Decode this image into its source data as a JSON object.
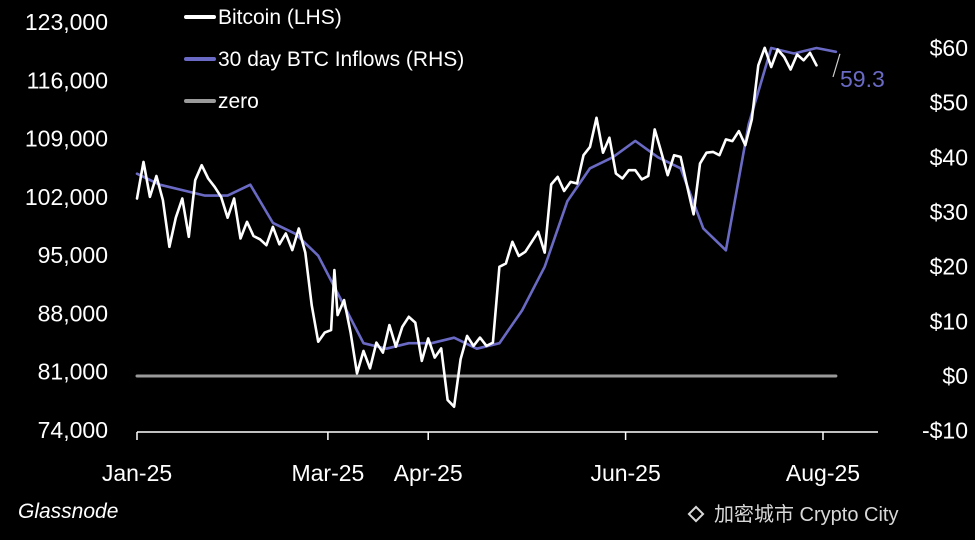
{
  "chart_data": {
    "type": "line",
    "x_axis": {
      "tick_labels": [
        "Jan-25",
        "Mar-25",
        "Apr-25",
        "Jun-25",
        "Aug-25"
      ],
      "range": [
        "2025-01-01",
        "2025-08-18"
      ]
    },
    "y_left": {
      "range": [
        74000,
        123000
      ],
      "ticks": [
        74000,
        81000,
        88000,
        95000,
        102000,
        109000,
        116000,
        123000
      ],
      "tick_labels": [
        "74,000",
        "81,000",
        "88,000",
        "95,000",
        "102,000",
        "109,000",
        "116,000",
        "123,000"
      ]
    },
    "y_right": {
      "range": [
        -10,
        65
      ],
      "ticks": [
        -10,
        0,
        10,
        20,
        30,
        40,
        50,
        60
      ],
      "tick_labels": [
        "-$10",
        "$0",
        "$10",
        "$20",
        "$30",
        "$40",
        "$50",
        "$60"
      ]
    },
    "legend": {
      "placement": "top-left",
      "entries": [
        {
          "label": "Bitcoin (LHS)",
          "color": "#ffffff"
        },
        {
          "label": "30 day BTC Inflows (RHS)",
          "color": "#6a6ac4"
        },
        {
          "label": "zero",
          "color": "#9a9a9a"
        }
      ]
    },
    "series": [
      {
        "name": "Bitcoin (LHS)",
        "axis": "left",
        "color": "#ffffff",
        "x": [
          "2025-01-01",
          "2025-01-03",
          "2025-01-05",
          "2025-01-07",
          "2025-01-09",
          "2025-01-11",
          "2025-01-13",
          "2025-01-15",
          "2025-01-17",
          "2025-01-19",
          "2025-01-21",
          "2025-01-23",
          "2025-01-25",
          "2025-01-27",
          "2025-01-29",
          "2025-01-31",
          "2025-02-02",
          "2025-02-04",
          "2025-02-06",
          "2025-02-08",
          "2025-02-10",
          "2025-02-12",
          "2025-02-14",
          "2025-02-16",
          "2025-02-18",
          "2025-02-20",
          "2025-02-22",
          "2025-02-24",
          "2025-02-26",
          "2025-02-28",
          "2025-03-02",
          "2025-03-03",
          "2025-03-04",
          "2025-03-06",
          "2025-03-08",
          "2025-03-10",
          "2025-03-12",
          "2025-03-14",
          "2025-03-16",
          "2025-03-18",
          "2025-03-20",
          "2025-03-22",
          "2025-03-24",
          "2025-03-26",
          "2025-03-28",
          "2025-03-30",
          "2025-04-01",
          "2025-04-03",
          "2025-04-05",
          "2025-04-07",
          "2025-04-09",
          "2025-04-11",
          "2025-04-13",
          "2025-04-15",
          "2025-04-17",
          "2025-04-19",
          "2025-04-21",
          "2025-04-23",
          "2025-04-25",
          "2025-04-27",
          "2025-04-29",
          "2025-05-01",
          "2025-05-03",
          "2025-05-05",
          "2025-05-07",
          "2025-05-09",
          "2025-05-11",
          "2025-05-13",
          "2025-05-15",
          "2025-05-17",
          "2025-05-19",
          "2025-05-21",
          "2025-05-23",
          "2025-05-25",
          "2025-05-27",
          "2025-05-29",
          "2025-05-31",
          "2025-06-02",
          "2025-06-04",
          "2025-06-06",
          "2025-06-08",
          "2025-06-10",
          "2025-06-12",
          "2025-06-14",
          "2025-06-16",
          "2025-06-18",
          "2025-06-20",
          "2025-06-22",
          "2025-06-24",
          "2025-06-26",
          "2025-06-28",
          "2025-06-30",
          "2025-07-02",
          "2025-07-04",
          "2025-07-06",
          "2025-07-08",
          "2025-07-10",
          "2025-07-12",
          "2025-07-14",
          "2025-07-16",
          "2025-07-18",
          "2025-07-20",
          "2025-07-22",
          "2025-07-24",
          "2025-07-26",
          "2025-07-28",
          "2025-07-30"
        ],
        "values": [
          101800,
          106200,
          102000,
          104500,
          101600,
          96000,
          99500,
          101800,
          97200,
          104000,
          105800,
          104200,
          103200,
          102000,
          99500,
          101800,
          97000,
          99000,
          97300,
          96900,
          96200,
          98400,
          96300,
          97600,
          95600,
          98200,
          95300,
          89000,
          84600,
          85700,
          86000,
          93200,
          87800,
          89600,
          85700,
          80800,
          83500,
          81400,
          84500,
          83300,
          86600,
          84000,
          86400,
          87600,
          86900,
          82300,
          85000,
          82700,
          83800,
          77600,
          76800,
          82500,
          85300,
          84100,
          85100,
          84100,
          84500,
          93600,
          94000,
          96600,
          94900,
          95400,
          96600,
          97800,
          95300,
          103500,
          104400,
          102700,
          103800,
          103600,
          107000,
          108000,
          111500,
          107300,
          109100,
          104800,
          104200,
          105200,
          105200,
          104100,
          104500,
          110100,
          107400,
          104600,
          107000,
          106800,
          103300,
          99900,
          106000,
          107300,
          107400,
          107000,
          108900,
          108700,
          109900,
          108200,
          111300,
          117800,
          119900,
          117600,
          119700,
          118800,
          117300,
          119100,
          118400,
          119300,
          117800
        ]
      },
      {
        "name": "30 day BTC Inflows (RHS)",
        "axis": "right",
        "color": "#6a6ac4",
        "x": [
          "2025-01-01",
          "2025-01-08",
          "2025-01-15",
          "2025-01-22",
          "2025-01-29",
          "2025-02-05",
          "2025-02-12",
          "2025-02-19",
          "2025-02-26",
          "2025-03-05",
          "2025-03-12",
          "2025-03-19",
          "2025-03-26",
          "2025-04-02",
          "2025-04-09",
          "2025-04-16",
          "2025-04-23",
          "2025-04-30",
          "2025-05-07",
          "2025-05-14",
          "2025-05-21",
          "2025-05-28",
          "2025-06-04",
          "2025-06-11",
          "2025-06-18",
          "2025-06-25",
          "2025-07-02",
          "2025-07-09",
          "2025-07-16",
          "2025-07-23",
          "2025-07-30",
          "2025-08-05"
        ],
        "values": [
          37,
          35,
          34,
          33,
          33,
          35,
          28,
          26,
          22,
          14,
          6,
          5,
          6,
          6,
          7,
          5,
          6,
          12,
          20,
          32,
          38,
          40,
          43,
          40,
          38,
          27,
          23,
          46,
          60,
          59,
          60,
          59.3
        ]
      },
      {
        "name": "zero",
        "axis": "right",
        "color": "#9a9a9a",
        "x": [
          "2025-01-01",
          "2025-08-05"
        ],
        "values": [
          0,
          0
        ]
      }
    ],
    "annotations": [
      {
        "text": "59.3",
        "series": "30 day BTC Inflows (RHS)",
        "color": "#6a6ac4"
      }
    ],
    "grid": false
  },
  "footer": {
    "source": "Glassnode",
    "watermark": "加密城市 Crypto City",
    "watermark_icon": "binance-logo-icon"
  }
}
